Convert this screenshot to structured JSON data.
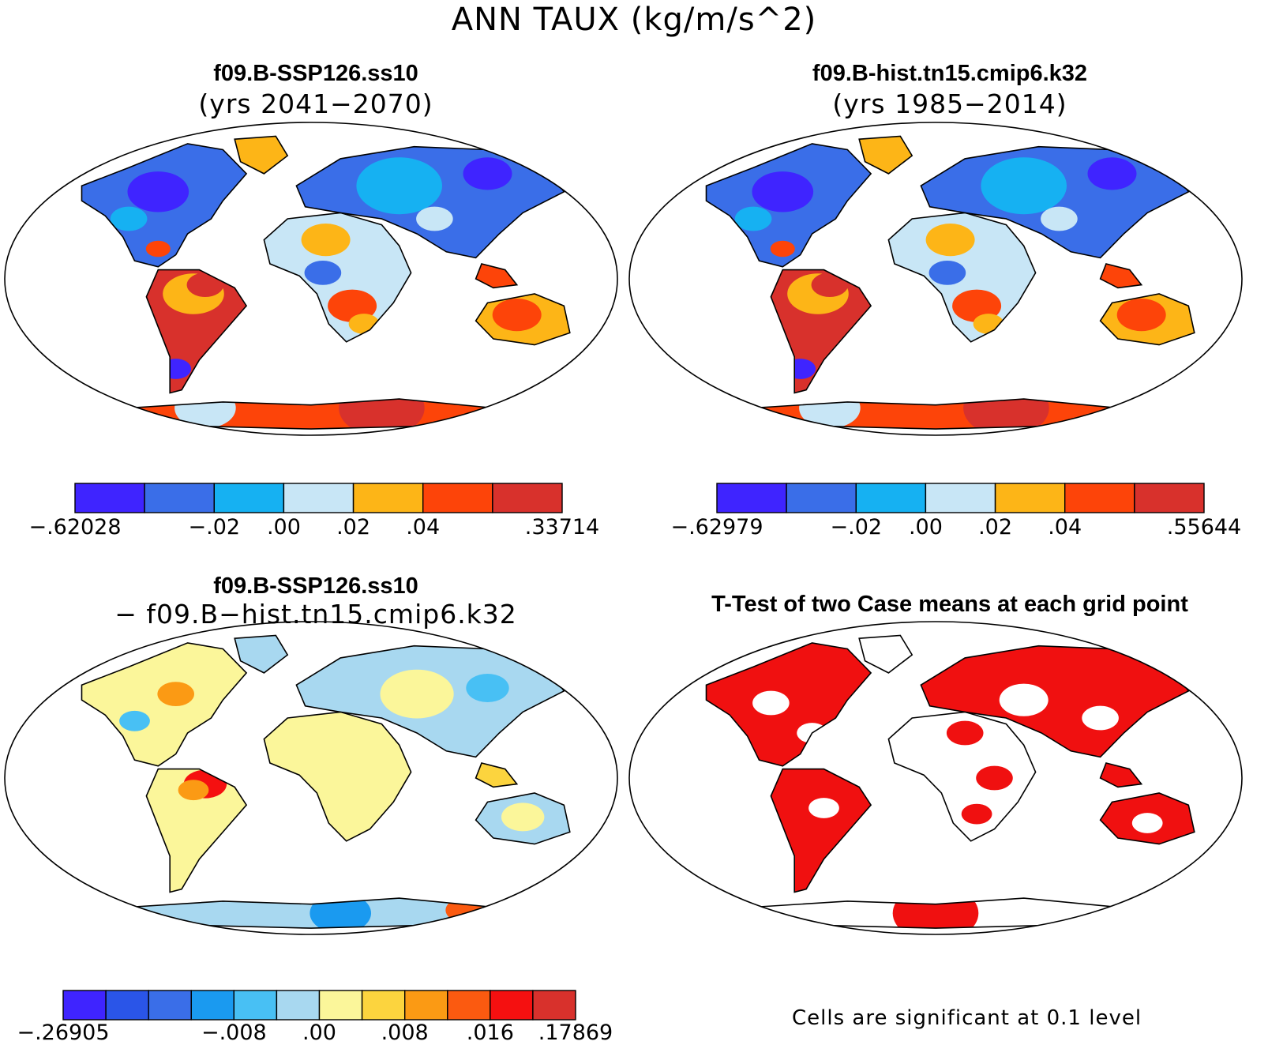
{
  "title": "ANN TAUX (kg/m/s^2)",
  "panels": [
    {
      "id": "case1",
      "title": "f09.B-SSP126.ss10",
      "subtitle": "(yrs 2041−2070)",
      "colorbar": {
        "colors": [
          "#3f24ff",
          "#3a6ee8",
          "#16b1f2",
          "#c8e6f6",
          "#fdb517",
          "#fd4409",
          "#d8312c"
        ],
        "labels": [
          {
            "text": "−.62028",
            "boundary": 0
          },
          {
            "text": "−.02",
            "boundary": 2
          },
          {
            "text": ".00",
            "boundary": 3
          },
          {
            "text": ".02",
            "boundary": 4
          },
          {
            "text": ".04",
            "boundary": 5
          },
          {
            "text": ".33714",
            "boundary": 7
          }
        ]
      }
    },
    {
      "id": "case2",
      "title": "f09.B-hist.tn15.cmip6.k32",
      "subtitle": "(yrs 1985−2014)",
      "colorbar": {
        "colors": [
          "#3f24ff",
          "#3a6ee8",
          "#16b1f2",
          "#c8e6f6",
          "#fdb517",
          "#fd4409",
          "#d8312c"
        ],
        "labels": [
          {
            "text": "−.62979",
            "boundary": 0
          },
          {
            "text": "−.02",
            "boundary": 2
          },
          {
            "text": ".00",
            "boundary": 3
          },
          {
            "text": ".02",
            "boundary": 4
          },
          {
            "text": ".04",
            "boundary": 5
          },
          {
            "text": ".55644",
            "boundary": 7
          }
        ]
      }
    },
    {
      "id": "diff",
      "title": "f09.B-SSP126.ss10",
      "subtitle": "− f09.B−hist.tn15.cmip6.k32",
      "colorbar": {
        "colors": [
          "#3f24ff",
          "#2a55e8",
          "#3a6ee8",
          "#1a9af0",
          "#48c0f4",
          "#a8d8f0",
          "#fbf69a",
          "#fcd43e",
          "#fb9a14",
          "#fb5a10",
          "#f51010",
          "#d8312c"
        ],
        "labels": [
          {
            "text": "−.26905",
            "boundary": 0
          },
          {
            "text": "−.008",
            "boundary": 4
          },
          {
            "text": ".00",
            "boundary": 6
          },
          {
            "text": ".008",
            "boundary": 8
          },
          {
            "text": ".016",
            "boundary": 10
          },
          {
            "text": ".17869",
            "boundary": 12
          }
        ]
      }
    },
    {
      "id": "ttest",
      "title": "T-Test of two Case means at each grid point",
      "note": "Cells are significant at 0.1 level"
    }
  ],
  "colors": {
    "land_outline": "#000000",
    "significant": "#f01010"
  }
}
